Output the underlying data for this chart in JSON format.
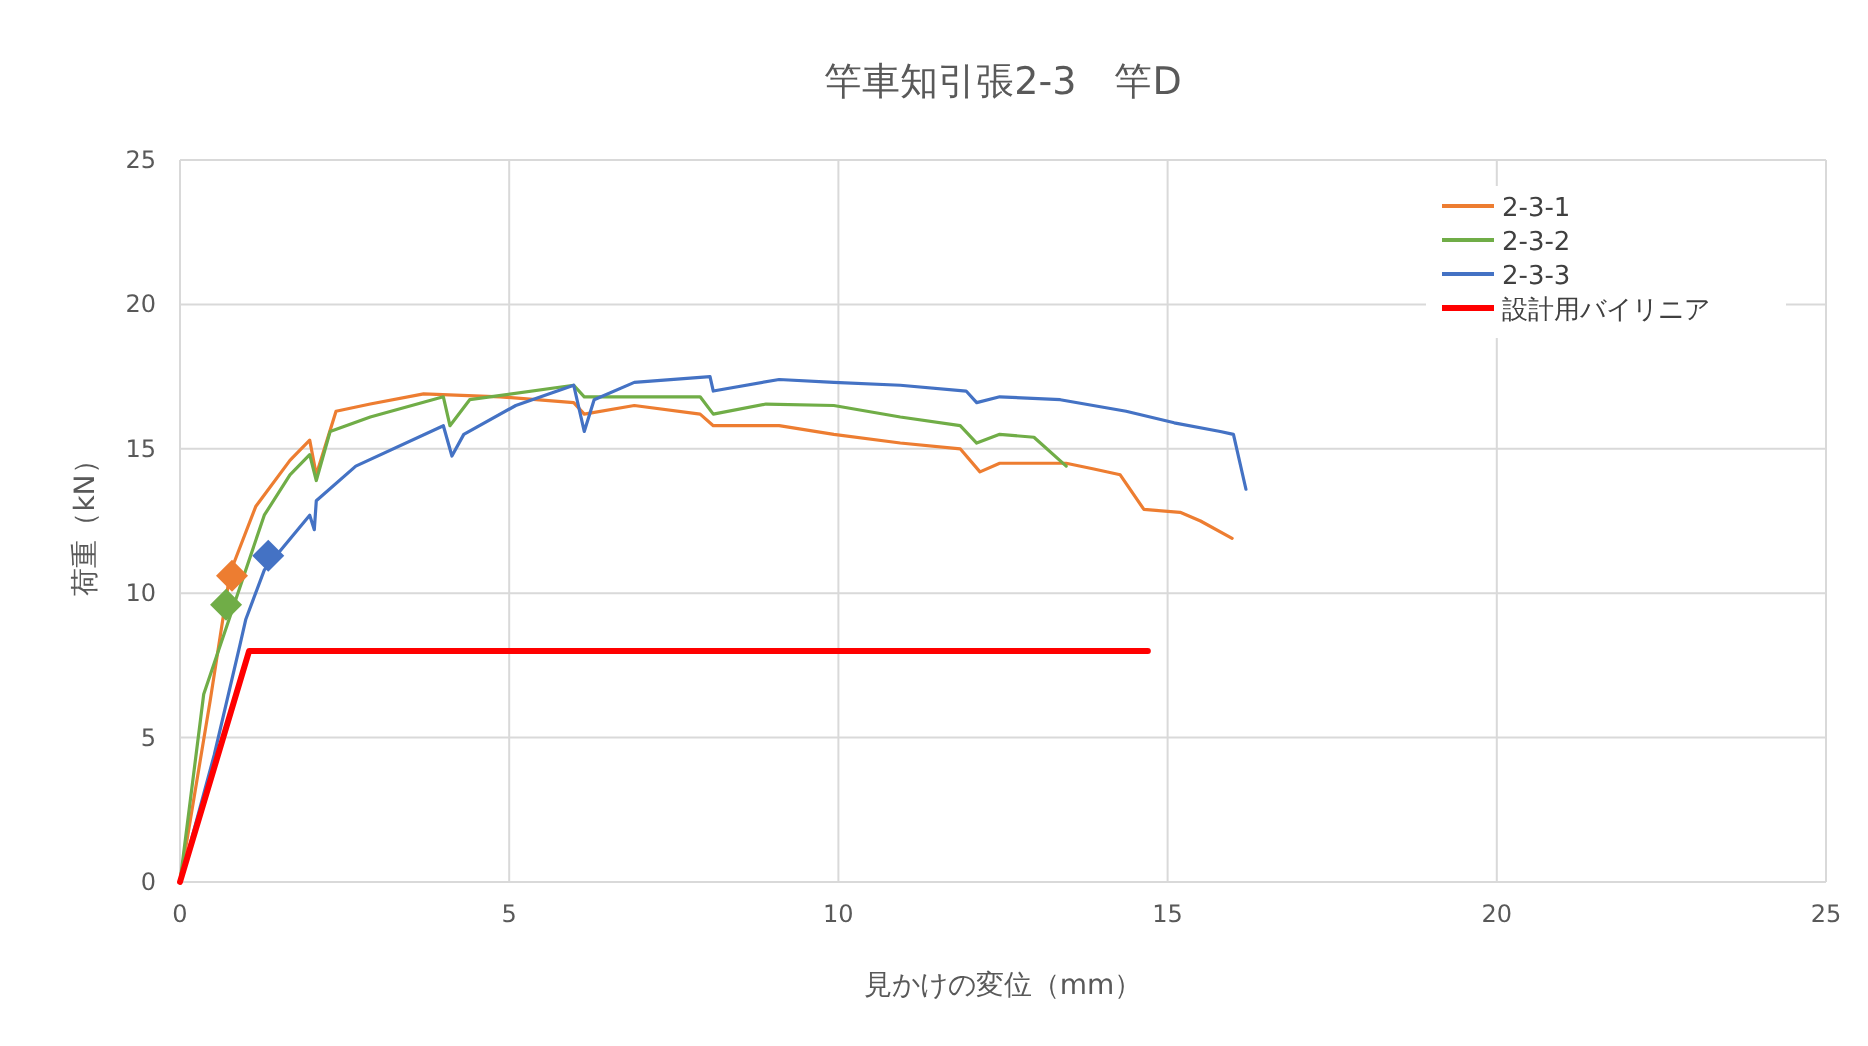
{
  "chart_data": {
    "type": "line",
    "title": "竿車知引張2-3　竿D",
    "xlabel": "見かけの変位（mm）",
    "ylabel": "荷重（kN）",
    "xlim": [
      0,
      25
    ],
    "ylim": [
      0,
      25
    ],
    "xticks": [
      0,
      5,
      10,
      15,
      20,
      25
    ],
    "yticks": [
      0,
      5,
      10,
      15,
      20,
      25
    ],
    "grid": true,
    "legend": "top right",
    "series": [
      {
        "name": "2-3-1",
        "color": "#ed7d31",
        "x": [
          0,
          0.46,
          0.76,
          1.15,
          1.67,
          1.97,
          2.07,
          2.37,
          2.89,
          3.7,
          4.86,
          5.98,
          6.14,
          6.9,
          7.9,
          8.1,
          9.1,
          9.93,
          10.94,
          11.85,
          12.15,
          12.45,
          13.46,
          13.88,
          14.28,
          14.64,
          15.19,
          15.5,
          15.98
        ],
        "values": [
          0,
          6.3,
          10.7,
          13.0,
          14.6,
          15.3,
          14.1,
          16.3,
          16.55,
          16.9,
          16.8,
          16.6,
          16.2,
          16.5,
          16.2,
          15.8,
          15.8,
          15.5,
          15.2,
          15.0,
          14.2,
          14.5,
          14.5,
          14.3,
          14.1,
          12.9,
          12.8,
          12.5,
          11.9
        ]
      },
      {
        "name": "2-3-2",
        "color": "#70ad47",
        "x": [
          0,
          0.36,
          0.85,
          1.28,
          1.67,
          1.97,
          2.07,
          2.28,
          2.89,
          4.0,
          4.1,
          4.4,
          5.98,
          6.14,
          7.9,
          8.1,
          8.9,
          9.93,
          10.94,
          11.85,
          12.1,
          12.45,
          12.97,
          13.46
        ],
        "values": [
          0,
          6.5,
          9.8,
          12.7,
          14.1,
          14.8,
          13.9,
          15.6,
          16.1,
          16.8,
          15.8,
          16.7,
          17.2,
          16.8,
          16.8,
          16.2,
          16.55,
          16.5,
          16.1,
          15.8,
          15.2,
          15.5,
          15.4,
          14.4
        ]
      },
      {
        "name": "2-3-3",
        "color": "#4472c4",
        "x": [
          0,
          0.52,
          0.91,
          1.0,
          1.28,
          1.97,
          2.04,
          2.07,
          2.67,
          4.0,
          4.13,
          4.31,
          5.1,
          5.98,
          6.14,
          6.29,
          6.9,
          8.05,
          8.1,
          9.1,
          9.93,
          10.94,
          11.94,
          12.1,
          12.45,
          13.37,
          14.37,
          15.1,
          15.8,
          16.0,
          16.19
        ],
        "values": [
          0,
          4.4,
          8.2,
          9.1,
          10.8,
          12.7,
          12.2,
          13.2,
          14.4,
          15.8,
          14.75,
          15.5,
          16.5,
          17.2,
          15.6,
          16.7,
          17.3,
          17.5,
          17.0,
          17.4,
          17.3,
          17.2,
          17.0,
          16.6,
          16.8,
          16.7,
          16.3,
          15.9,
          15.6,
          15.5,
          13.6
        ]
      },
      {
        "name": "設計用バイリニア",
        "color": "#ff0000",
        "x": [
          0,
          1.05,
          14.7
        ],
        "values": [
          0,
          8.0,
          8.0
        ]
      },
      {
        "type": "scatter",
        "marker": "diamond",
        "color": "#ed7d31",
        "x": [
          0.79
        ],
        "values": [
          10.6
        ]
      },
      {
        "type": "scatter",
        "marker": "diamond",
        "color": "#70ad47",
        "x": [
          0.7
        ],
        "values": [
          9.6
        ]
      },
      {
        "type": "scatter",
        "marker": "diamond",
        "color": "#4472c4",
        "x": [
          1.34
        ],
        "values": [
          11.3
        ]
      }
    ]
  }
}
